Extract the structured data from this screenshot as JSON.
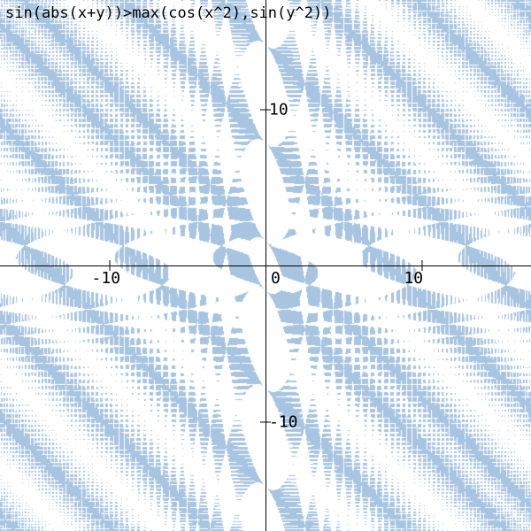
{
  "chart_data": {
    "type": "implicit-region",
    "title": "sin(abs(x+y))>max(cos(x^2),sin(y^2))",
    "xlabel": "",
    "ylabel": "",
    "xlim": [
      -17,
      17
    ],
    "ylim": [
      -17,
      17
    ],
    "x_ticks": [
      -10,
      0,
      10
    ],
    "y_ticks": [
      10,
      -10
    ],
    "x_tick_labels": [
      "-10",
      "0",
      "10"
    ],
    "y_tick_labels": [
      "10",
      "-10"
    ],
    "grid": false,
    "fill_color": "#a7c4e1",
    "background_color": "#ffffff",
    "axis_color": "#000000"
  }
}
